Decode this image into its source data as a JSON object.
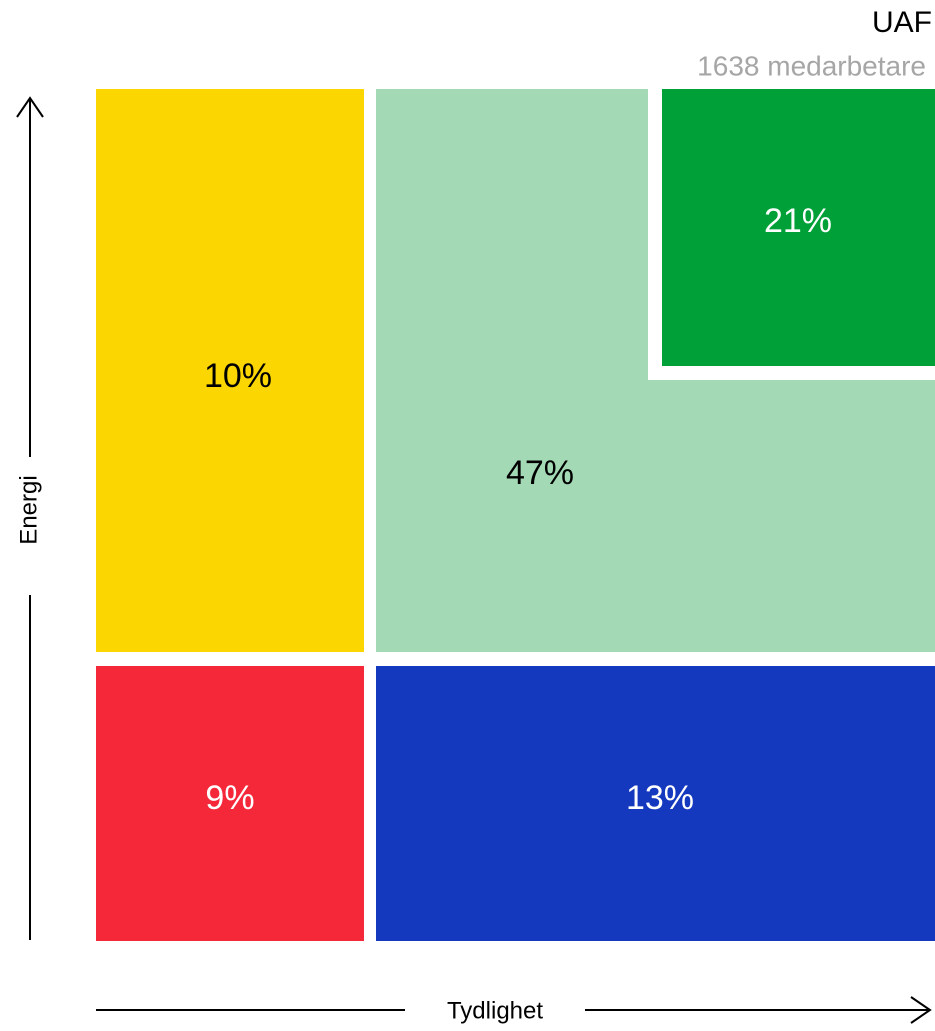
{
  "header": {
    "title": "UAF",
    "subtitle": "1638 medarbetare"
  },
  "axes": {
    "y_label": "Energi",
    "x_label": "Tydlighet"
  },
  "cells": [
    {
      "label": "10%"
    },
    {
      "label": "47%"
    },
    {
      "label": "21%"
    },
    {
      "label": "9%"
    },
    {
      "label": "13%"
    }
  ]
}
